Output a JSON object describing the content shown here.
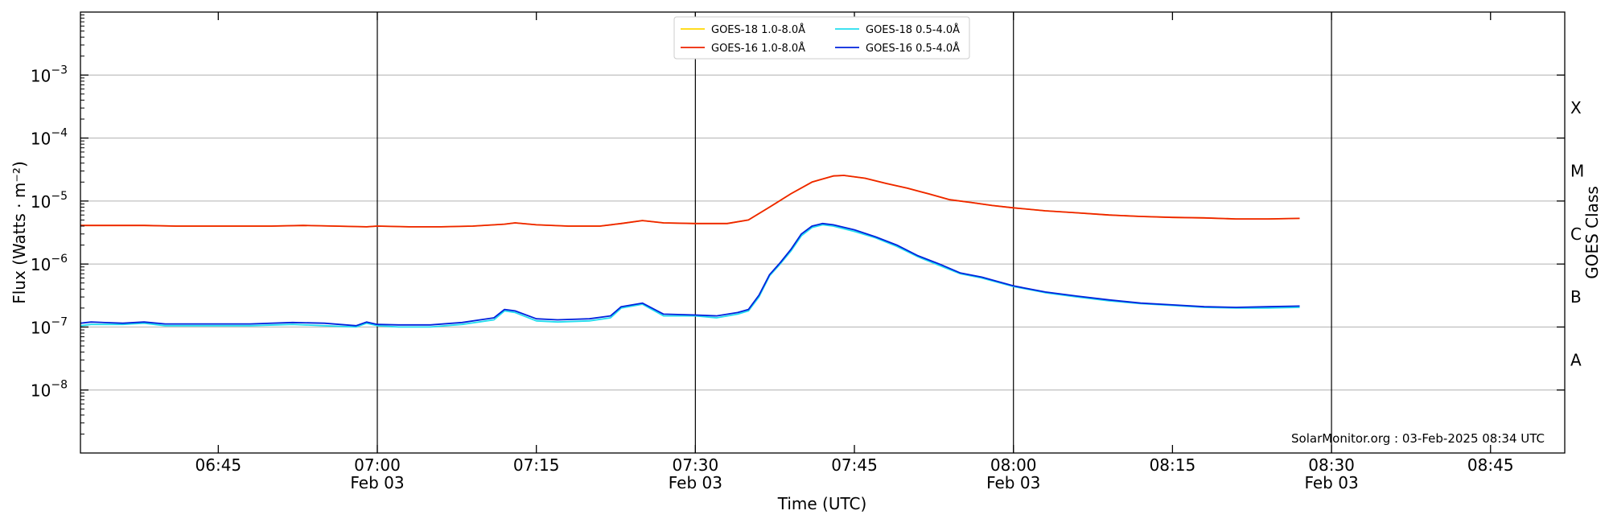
{
  "chart_data": {
    "type": "line",
    "ylabel": "Flux (Watts · m⁻²)",
    "ylabel_right": "GOES Class",
    "xlabel": "Time (UTC)",
    "credit": "SolarMonitor.org : 03-Feb-2025 08:34 UTC",
    "yscale": "log",
    "xlim": [
      "06:32",
      "08:52"
    ],
    "ylim": [
      1e-09,
      0.01
    ],
    "y_ticks": [
      {
        "value": 1e-08,
        "base": "10",
        "exp": "−8"
      },
      {
        "value": 1e-07,
        "base": "10",
        "exp": "−7"
      },
      {
        "value": 1e-06,
        "base": "10",
        "exp": "−6"
      },
      {
        "value": 1e-05,
        "base": "10",
        "exp": "−5"
      },
      {
        "value": 0.0001,
        "base": "10",
        "exp": "−4"
      },
      {
        "value": 0.001,
        "base": "10",
        "exp": "−3"
      }
    ],
    "x_ticks": [
      {
        "time": "06:45",
        "label": "06:45",
        "sub": ""
      },
      {
        "time": "07:00",
        "label": "07:00",
        "sub": "Feb 03"
      },
      {
        "time": "07:15",
        "label": "07:15",
        "sub": ""
      },
      {
        "time": "07:30",
        "label": "07:30",
        "sub": "Feb 03"
      },
      {
        "time": "07:45",
        "label": "07:45",
        "sub": ""
      },
      {
        "time": "08:00",
        "label": "08:00",
        "sub": "Feb 03"
      },
      {
        "time": "08:15",
        "label": "08:15",
        "sub": ""
      },
      {
        "time": "08:30",
        "label": "08:30",
        "sub": "Feb 03"
      },
      {
        "time": "08:45",
        "label": "08:45",
        "sub": ""
      }
    ],
    "vertical_lines": [
      "07:00",
      "07:30",
      "08:00",
      "08:30"
    ],
    "grid": "horizontal",
    "goes_classes": [
      {
        "label": "A",
        "value": 3e-08
      },
      {
        "label": "B",
        "value": 3e-07
      },
      {
        "label": "C",
        "value": 3e-06
      },
      {
        "label": "M",
        "value": 3e-05
      },
      {
        "label": "X",
        "value": 0.0003
      }
    ],
    "legend_position": "top-center",
    "series": [
      {
        "name": "GOES-18 1.0-8.0Å",
        "color": "#ffd700",
        "x": [
          "06:32",
          "06:35",
          "06:38",
          "06:41",
          "06:44",
          "06:47",
          "06:50",
          "06:53",
          "06:56",
          "06:59",
          "07:00",
          "07:03",
          "07:06",
          "07:09",
          "07:12",
          "07:13",
          "07:15",
          "07:18",
          "07:21",
          "07:23",
          "07:25",
          "07:27",
          "07:30",
          "07:33",
          "07:35",
          "07:37",
          "07:39",
          "07:41",
          "07:43",
          "07:44",
          "07:46",
          "07:48",
          "07:50",
          "07:52",
          "07:54",
          "07:56",
          "07:58",
          "08:00",
          "08:03",
          "08:06",
          "08:09",
          "08:12",
          "08:15",
          "08:18",
          "08:21",
          "08:24",
          "08:27"
        ],
        "y": [
          4.1e-06,
          4.1e-06,
          4.1e-06,
          4e-06,
          4e-06,
          4e-06,
          4e-06,
          4.1e-06,
          4e-06,
          3.9e-06,
          4e-06,
          3.9e-06,
          3.9e-06,
          4e-06,
          4.3e-06,
          4.5e-06,
          4.2e-06,
          4e-06,
          4e-06,
          4.4e-06,
          4.9e-06,
          4.5e-06,
          4.4e-06,
          4.4e-06,
          5e-06,
          8e-06,
          1.3e-05,
          2e-05,
          2.5e-05,
          2.55e-05,
          2.3e-05,
          1.9e-05,
          1.6e-05,
          1.3e-05,
          1.05e-05,
          9.5e-06,
          8.5e-06,
          7.8e-06,
          7e-06,
          6.5e-06,
          6e-06,
          5.7e-06,
          5.5e-06,
          5.4e-06,
          5.2e-06,
          5.2e-06,
          5.3e-06
        ]
      },
      {
        "name": "GOES-16 1.0-8.0Å",
        "color": "#ee2200",
        "x": [
          "06:32",
          "06:35",
          "06:38",
          "06:41",
          "06:44",
          "06:47",
          "06:50",
          "06:53",
          "06:56",
          "06:59",
          "07:00",
          "07:03",
          "07:06",
          "07:09",
          "07:12",
          "07:13",
          "07:15",
          "07:18",
          "07:21",
          "07:23",
          "07:25",
          "07:27",
          "07:30",
          "07:33",
          "07:35",
          "07:37",
          "07:39",
          "07:41",
          "07:43",
          "07:44",
          "07:46",
          "07:48",
          "07:50",
          "07:52",
          "07:54",
          "07:56",
          "07:58",
          "08:00",
          "08:03",
          "08:06",
          "08:09",
          "08:12",
          "08:15",
          "08:18",
          "08:21",
          "08:24",
          "08:27"
        ],
        "y": [
          4.1e-06,
          4.1e-06,
          4.1e-06,
          4e-06,
          4e-06,
          4e-06,
          4e-06,
          4.1e-06,
          4e-06,
          3.9e-06,
          4e-06,
          3.9e-06,
          3.9e-06,
          4e-06,
          4.3e-06,
          4.5e-06,
          4.2e-06,
          4e-06,
          4e-06,
          4.4e-06,
          4.9e-06,
          4.5e-06,
          4.4e-06,
          4.4e-06,
          5e-06,
          8e-06,
          1.3e-05,
          2e-05,
          2.5e-05,
          2.55e-05,
          2.3e-05,
          1.9e-05,
          1.6e-05,
          1.3e-05,
          1.05e-05,
          9.5e-06,
          8.5e-06,
          7.8e-06,
          7e-06,
          6.5e-06,
          6e-06,
          5.7e-06,
          5.5e-06,
          5.4e-06,
          5.2e-06,
          5.2e-06,
          5.3e-06
        ]
      },
      {
        "name": "GOES-18 0.5-4.0Å",
        "color": "#22ddee",
        "x": [
          "06:32",
          "06:33",
          "06:36",
          "06:38",
          "06:40",
          "06:44",
          "06:48",
          "06:52",
          "06:55",
          "06:58",
          "06:59",
          "07:00",
          "07:02",
          "07:05",
          "07:08",
          "07:11",
          "07:12",
          "07:13",
          "07:15",
          "07:17",
          "07:20",
          "07:22",
          "07:23",
          "07:25",
          "07:27",
          "07:30",
          "07:32",
          "07:34",
          "07:35",
          "07:36",
          "07:37",
          "07:38",
          "07:39",
          "07:40",
          "07:41",
          "07:42",
          "07:43",
          "07:45",
          "07:47",
          "07:49",
          "07:51",
          "07:53",
          "07:55",
          "07:57",
          "08:00",
          "08:03",
          "08:06",
          "08:09",
          "08:12",
          "08:15",
          "08:18",
          "08:21",
          "08:24",
          "08:27"
        ],
        "y": [
          1.05e-07,
          1.1e-07,
          1.1e-07,
          1.15e-07,
          1.05e-07,
          1.05e-07,
          1.05e-07,
          1.1e-07,
          1.05e-07,
          1e-07,
          1.15e-07,
          1.05e-07,
          1e-07,
          1e-07,
          1.1e-07,
          1.3e-07,
          1.8e-07,
          1.7e-07,
          1.25e-07,
          1.2e-07,
          1.25e-07,
          1.4e-07,
          2e-07,
          2.3e-07,
          1.5e-07,
          1.5e-07,
          1.4e-07,
          1.6e-07,
          1.8e-07,
          3e-07,
          6.5e-07,
          1e-06,
          1.6e-06,
          2.8e-06,
          3.8e-06,
          4.2e-06,
          4e-06,
          3.3e-06,
          2.6e-06,
          1.9e-06,
          1.3e-06,
          9.5e-07,
          7e-07,
          6e-07,
          4.4e-07,
          3.5e-07,
          3e-07,
          2.6e-07,
          2.35e-07,
          2.2e-07,
          2.05e-07,
          2e-07,
          2e-07,
          2.05e-07
        ]
      },
      {
        "name": "GOES-16 0.5-4.0Å",
        "color": "#0022dd",
        "x": [
          "06:32",
          "06:33",
          "06:36",
          "06:38",
          "06:40",
          "06:44",
          "06:48",
          "06:52",
          "06:55",
          "06:58",
          "06:59",
          "07:00",
          "07:02",
          "07:05",
          "07:08",
          "07:11",
          "07:12",
          "07:13",
          "07:15",
          "07:17",
          "07:20",
          "07:22",
          "07:23",
          "07:25",
          "07:27",
          "07:30",
          "07:32",
          "07:34",
          "07:35",
          "07:36",
          "07:37",
          "07:38",
          "07:39",
          "07:40",
          "07:41",
          "07:42",
          "07:43",
          "07:45",
          "07:47",
          "07:49",
          "07:51",
          "07:53",
          "07:55",
          "07:57",
          "08:00",
          "08:03",
          "08:06",
          "08:09",
          "08:12",
          "08:15",
          "08:18",
          "08:21",
          "08:24",
          "08:27"
        ],
        "y": [
          1.15e-07,
          1.2e-07,
          1.15e-07,
          1.2e-07,
          1.12e-07,
          1.12e-07,
          1.12e-07,
          1.18e-07,
          1.15e-07,
          1.05e-07,
          1.2e-07,
          1.1e-07,
          1.08e-07,
          1.08e-07,
          1.18e-07,
          1.4e-07,
          1.9e-07,
          1.8e-07,
          1.35e-07,
          1.3e-07,
          1.35e-07,
          1.5e-07,
          2.1e-07,
          2.4e-07,
          1.6e-07,
          1.55e-07,
          1.5e-07,
          1.7e-07,
          1.9e-07,
          3.2e-07,
          6.8e-07,
          1.05e-06,
          1.7e-06,
          3e-06,
          4e-06,
          4.4e-06,
          4.2e-06,
          3.5e-06,
          2.7e-06,
          2e-06,
          1.35e-06,
          1e-06,
          7.2e-07,
          6.2e-07,
          4.5e-07,
          3.6e-07,
          3.1e-07,
          2.7e-07,
          2.4e-07,
          2.25e-07,
          2.1e-07,
          2.05e-07,
          2.1e-07,
          2.15e-07
        ]
      }
    ]
  }
}
